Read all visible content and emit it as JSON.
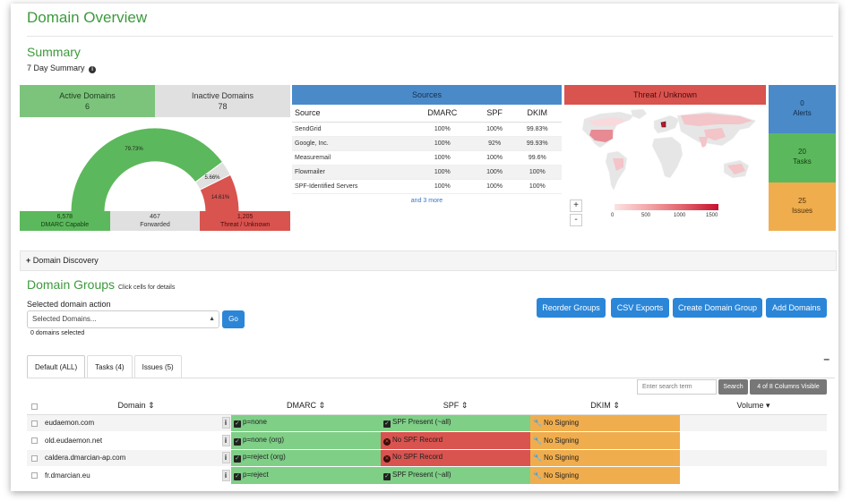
{
  "page": {
    "title": "Domain Overview"
  },
  "summary": {
    "title": "Summary",
    "subtitle": "7 Day Summary"
  },
  "domains": {
    "active_label": "Active Domains",
    "active_value": "6",
    "inactive_label": "Inactive Domains",
    "inactive_value": "78",
    "donut": [
      {
        "label": "79.73%",
        "fraction": 0.7973,
        "color": "#5cb85c"
      },
      {
        "label": "5.66%",
        "fraction": 0.0566,
        "color": "#e0e0e0"
      },
      {
        "label": "14.61%",
        "fraction": 0.1461,
        "color": "#d9534f"
      }
    ],
    "footer": [
      {
        "value": "6,578",
        "label": "DMARC Capable"
      },
      {
        "value": "467",
        "label": "Forwarded"
      },
      {
        "value": "1,205",
        "label": "Threat / Unknown"
      }
    ]
  },
  "sources": {
    "title": "Sources",
    "headers": [
      "Source",
      "DMARC",
      "SPF",
      "DKIM"
    ],
    "rows": [
      [
        "SendGrid",
        "100%",
        "100%",
        "99.83%"
      ],
      [
        "Google, Inc.",
        "100%",
        "92%",
        "99.93%"
      ],
      [
        "Measuremail",
        "100%",
        "100%",
        "99.6%"
      ],
      [
        "Flowmailer",
        "100%",
        "100%",
        "100%"
      ],
      [
        "SPF-Identified Servers",
        "100%",
        "100%",
        "100%"
      ]
    ],
    "more_link": "and 3 more"
  },
  "threat": {
    "title": "Threat / Unknown",
    "zoom_in": "+",
    "zoom_out": "-",
    "legend": [
      "0",
      "500",
      "1000",
      "1500"
    ]
  },
  "stats": [
    {
      "value": "0",
      "label": "Alerts"
    },
    {
      "value": "20",
      "label": "Tasks"
    },
    {
      "value": "25",
      "label": "Issues"
    }
  ],
  "discovery": {
    "label": "Domain Discovery"
  },
  "groups": {
    "title": "Domain Groups",
    "hint": "Click cells for details",
    "action_label": "Selected domain action",
    "action_selected": "Selected Domains...",
    "go": "Go",
    "selected_count": "0 domains selected",
    "buttons": {
      "reorder": "Reorder Groups",
      "csv": "CSV Exports",
      "create": "Create Domain Group",
      "add": "Add Domains"
    },
    "tabs": [
      "Default (ALL)",
      "Tasks (4)",
      "Issues (5)"
    ],
    "search_placeholder": "Enter search term",
    "search_button": "Search",
    "columns_button": "4 of 8 Columns Visible",
    "headers": {
      "domain": "Domain",
      "dmarc": "DMARC",
      "spf": "SPF",
      "dkim": "DKIM",
      "volume": "Volume"
    },
    "info_label": "i",
    "rows": [
      {
        "domain": "eudaemon.com",
        "dmarc": "p=none",
        "spf": "SPF Present (~all)",
        "spf_status": "ok",
        "dkim": "No Signing"
      },
      {
        "domain": "old.eudaemon.net",
        "dmarc": "p=none (org)",
        "spf": "No SPF Record",
        "spf_status": "bad",
        "dkim": "No Signing"
      },
      {
        "domain": "caldera.dmarcian-ap.com",
        "dmarc": "p=reject (org)",
        "spf": "No SPF Record",
        "spf_status": "bad",
        "dkim": "No Signing"
      },
      {
        "domain": "fr.dmarcian.eu",
        "dmarc": "p=reject",
        "spf": "SPF Present (~all)",
        "spf_status": "ok",
        "dkim": "No Signing"
      }
    ]
  }
}
